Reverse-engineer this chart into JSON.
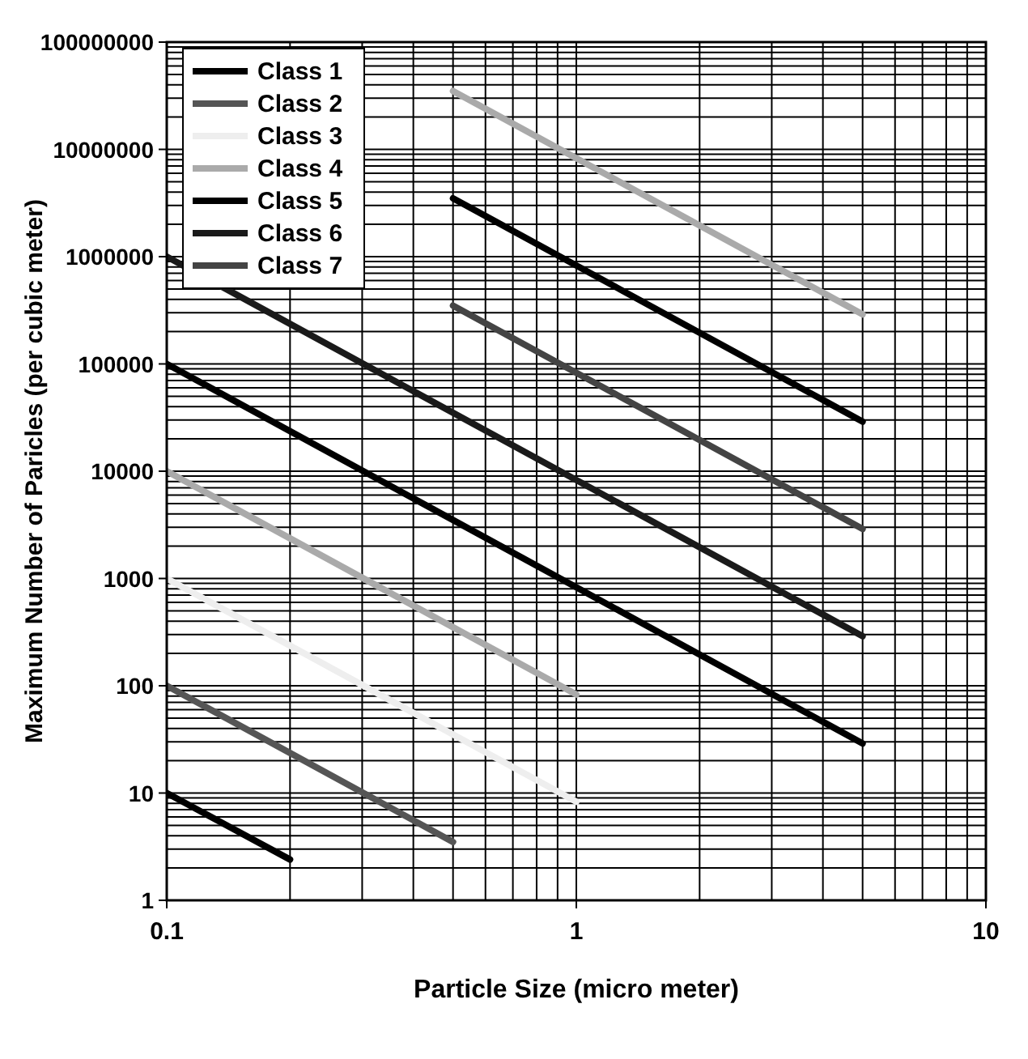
{
  "chart_data": {
    "type": "line",
    "xlabel": "Particle Size (micro meter)",
    "ylabel": "Maximum Number of Paricles (per cubic meter)",
    "log": "xy",
    "grid": true,
    "legend": "top left",
    "marker": "none",
    "line_style": "solid",
    "xlim": [
      0.1,
      10
    ],
    "xticks": [
      0.1,
      1,
      10
    ],
    "ylim": [
      1,
      100000000
    ],
    "yticks": [
      1,
      10,
      100,
      1000,
      10000,
      100000,
      1000000,
      10000000,
      100000000
    ],
    "series": [
      {
        "name": "Class 1",
        "color": "#000000",
        "x": [
          0.1,
          0.2
        ],
        "values": [
          10,
          2.4
        ]
      },
      {
        "name": "Class 2",
        "color": "#555555",
        "x": [
          0.1,
          0.5
        ],
        "values": [
          100,
          3.5
        ]
      },
      {
        "name": "Class 3",
        "color": "#eeeeee",
        "x": [
          0.1,
          1
        ],
        "values": [
          1000,
          8.3
        ]
      },
      {
        "name": "Class 4",
        "color": "#aaaaaa",
        "x": [
          0.1,
          1
        ],
        "values": [
          10000,
          83
        ]
      },
      {
        "name": "Class 5",
        "color": "#000000",
        "x": [
          0.1,
          5
        ],
        "values": [
          100000,
          29
        ]
      },
      {
        "name": "Class 6",
        "color": "#1a1a1a",
        "x": [
          0.1,
          5
        ],
        "values": [
          1000000,
          290
        ]
      },
      {
        "name": "Class 7",
        "color": "#444444",
        "x": [
          0.5,
          5
        ],
        "values": [
          350000,
          2900
        ]
      },
      {
        "color": "#000000",
        "x": [
          0.5,
          5
        ],
        "values": [
          3500000,
          29000
        ]
      },
      {
        "color": "#aaaaaa",
        "x": [
          0.5,
          5
        ],
        "values": [
          35000000,
          290000
        ]
      }
    ]
  }
}
